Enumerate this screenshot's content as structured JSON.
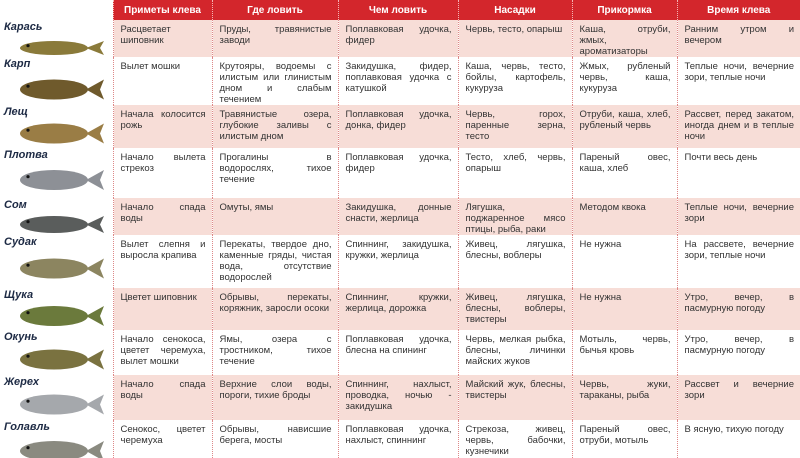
{
  "header": {
    "columns": [
      "Приметы клева",
      "Где ловить",
      "Чем ловить",
      "Насадки",
      "Прикормка",
      "Время клева"
    ]
  },
  "rows": [
    {
      "fish": "Карась",
      "cells": [
        "Расцветает шиповник",
        "Пруды, травянистые заводи",
        "Поплавковая удочка, фидер",
        "Червь, тесто, опарыш",
        "Каша, отруби, жмых, ароматизаторы",
        "Ранним утром и вечером"
      ]
    },
    {
      "fish": "Карп",
      "cells": [
        "Вылет мошки",
        "Крутояры, водоемы с илистым или глинистым дном и слабым течением",
        "Закидушка, фидер, поплавковая удочка с катушкой",
        "Каша, червь, тесто, бойлы, картофель, кукуруза",
        "Жмых, рубленый червь, каша, кукуруза",
        "Теплые ночи, вечерние зори, теплые ночи"
      ]
    },
    {
      "fish": "Лещ",
      "cells": [
        "Начала колосится рожь",
        "Травянистые озера, глубокие заливы с илистым дном",
        "Поплавковая удочка, донка, фидер",
        "Червь, горох, паренные зерна, тесто",
        "Отруби, каша, хлеб, рубленый червь",
        "Рассвет, перед закатом, иногда днем и в теплые ночи"
      ]
    },
    {
      "fish": "Плотва",
      "cells": [
        "Начало вылета стрекоз",
        "Прогалины в водорослях, тихое течение",
        "Поплавковая удочка, фидер",
        "Тесто, хлеб, червь, опарыш",
        "Пареный овес, каша, хлеб",
        "Почти весь день"
      ]
    },
    {
      "fish": "Сом",
      "cells": [
        "Начало спада воды",
        "Омуты, ямы",
        "Закидушка, донные снасти, жерлица",
        "Лягушка, поджаренное мясо птицы, рыба, раки",
        "Методом квока",
        "Теплые ночи, вечерние зори"
      ]
    },
    {
      "fish": "Судак",
      "cells": [
        "Вылет слепня и выросла крапива",
        "Перекаты, твердое дно, каменные гряды, чистая вода, отсутствие водорослей",
        "Спиннинг, закидушка, кружки, жерлица",
        "Живец, лягушка, блесны, воблеры",
        "Не нужна",
        "На рассвете, вечерние зори, теплые ночи"
      ]
    },
    {
      "fish": "Щука",
      "cells": [
        "Цветет шиповник",
        "Обрывы, перекаты, коряжник, заросли осоки",
        "Спиннинг, кружки, жерлица, дорожка",
        "Живец, лягушка, блесны, воблеры, твистеры",
        "Не нужна",
        "Утро, вечер, в пасмурную погоду"
      ]
    },
    {
      "fish": "Окунь",
      "cells": [
        "Начало сенокоса, цветет черемуха, вылет мошки",
        "Ямы, озера с тростником, тихое течение",
        "Поплавковая удочка, блесна на спининг",
        "Червь, мелкая рыбка, блесны, личинки майских жуков",
        "Мотыль, червь, бычья кровь",
        "Утро, вечер, в пасмурную погоду"
      ]
    },
    {
      "fish": "Жерех",
      "cells": [
        "Начало спада воды",
        "Верхние слои воды, пороги, тихие броды",
        "Спиннинг, нахлыст, проводка, ночью - закидушка",
        "Майский жук, блесны, твистеры",
        "Червь, жуки, тараканы, рыба",
        "Рассвет и вечерние зори"
      ]
    },
    {
      "fish": "Голавль",
      "cells": [
        "Сенокос, цветет черемуха",
        "Обрывы, нависшие берега, мосты",
        "Поплавковая удочка, нахлыст, спиннинг",
        "Стрекоза, живец, червь, бабочки, кузнечики",
        "Пареный овес, отруби, мотыль",
        "В ясную, тихую погоду"
      ]
    }
  ]
}
